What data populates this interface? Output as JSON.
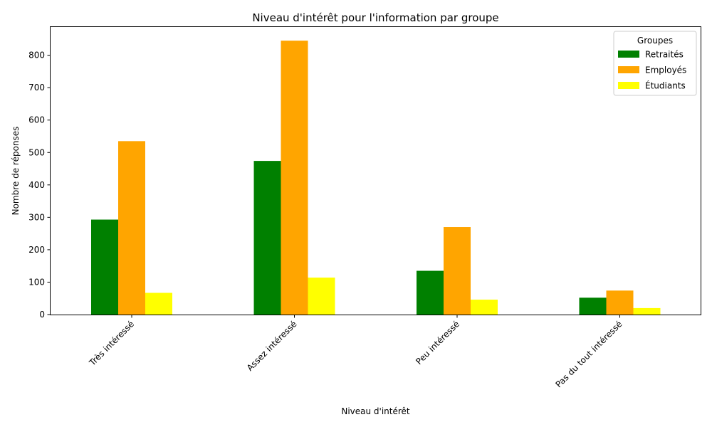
{
  "chart_data": {
    "type": "bar",
    "title": "Niveau d'intérêt pour l'information par groupe",
    "xlabel": "Niveau d'intérêt",
    "ylabel": "Nombre de réponses",
    "categories": [
      "Très intéressé",
      "Assez intéressé",
      "Peu intéressé",
      "Pas du tout intéressé"
    ],
    "series": [
      {
        "name": "Retraités",
        "color": "#008000",
        "values": [
          293,
          474,
          135,
          52
        ]
      },
      {
        "name": "Employés",
        "color": "#FFA500",
        "values": [
          535,
          845,
          270,
          74
        ]
      },
      {
        "name": "Étudiants",
        "color": "#FFFF00",
        "values": [
          67,
          114,
          46,
          20
        ]
      }
    ],
    "ylim": [
      0,
      887
    ],
    "yticks": [
      0,
      100,
      200,
      300,
      400,
      500,
      600,
      700,
      800
    ],
    "grid": false,
    "legend": {
      "title": "Groupes",
      "position": "top-right"
    }
  }
}
